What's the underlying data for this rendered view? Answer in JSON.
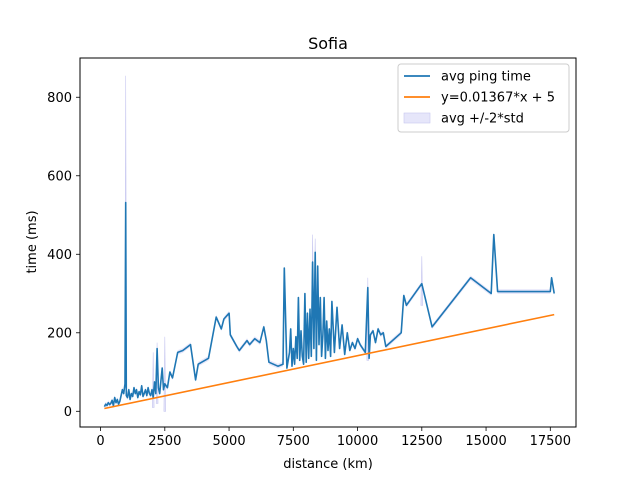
{
  "chart_data": {
    "type": "line",
    "title": "Sofia",
    "xlabel": "distance (km)",
    "ylabel": "time (ms)",
    "xlim": [
      -800,
      18500
    ],
    "ylim": [
      -40,
      900
    ],
    "xticks": [
      0,
      2500,
      5000,
      7500,
      10000,
      12500,
      15000,
      17500
    ],
    "yticks": [
      0,
      200,
      400,
      600,
      800
    ],
    "grid": false,
    "legend_position": "upper right",
    "colors": {
      "avg": "#1f77b4",
      "fit": "#ff7f0e",
      "band_fill": "#e6e6fa",
      "band_edge": "#c8c8f0"
    },
    "legend": [
      {
        "label": "avg ping time",
        "kind": "line",
        "color": "#1f77b4"
      },
      {
        "label": "y=0.01367*x + 5",
        "kind": "line",
        "color": "#ff7f0e"
      },
      {
        "label": "avg +/-2*std",
        "kind": "band",
        "color": "#e6e6fa"
      }
    ],
    "series": [
      {
        "name": "avg ping time",
        "color": "#1f77b4",
        "points": [
          [
            150,
            12
          ],
          [
            200,
            18
          ],
          [
            250,
            15
          ],
          [
            300,
            22
          ],
          [
            350,
            17
          ],
          [
            400,
            20
          ],
          [
            450,
            28
          ],
          [
            500,
            14
          ],
          [
            550,
            35
          ],
          [
            600,
            22
          ],
          [
            650,
            30
          ],
          [
            700,
            18
          ],
          [
            750,
            25
          ],
          [
            800,
            40
          ],
          [
            850,
            55
          ],
          [
            900,
            45
          ],
          [
            950,
            70
          ],
          [
            980,
            532
          ],
          [
            1000,
            40
          ],
          [
            1050,
            35
          ],
          [
            1100,
            55
          ],
          [
            1150,
            30
          ],
          [
            1200,
            45
          ],
          [
            1250,
            38
          ],
          [
            1300,
            60
          ],
          [
            1350,
            45
          ],
          [
            1400,
            55
          ],
          [
            1450,
            35
          ],
          [
            1500,
            50
          ],
          [
            1550,
            42
          ],
          [
            1600,
            65
          ],
          [
            1650,
            38
          ],
          [
            1700,
            45
          ],
          [
            1750,
            55
          ],
          [
            1800,
            40
          ],
          [
            1850,
            60
          ],
          [
            1900,
            45
          ],
          [
            1950,
            40
          ],
          [
            2000,
            55
          ],
          [
            2050,
            35
          ],
          [
            2100,
            75
          ],
          [
            2150,
            45
          ],
          [
            2200,
            160
          ],
          [
            2250,
            60
          ],
          [
            2300,
            45
          ],
          [
            2350,
            80
          ],
          [
            2400,
            110
          ],
          [
            2450,
            55
          ],
          [
            2500,
            70
          ],
          [
            2600,
            60
          ],
          [
            2700,
            100
          ],
          [
            2800,
            85
          ],
          [
            3000,
            150
          ],
          [
            3200,
            155
          ],
          [
            3500,
            170
          ],
          [
            3700,
            80
          ],
          [
            3800,
            120
          ],
          [
            4200,
            135
          ],
          [
            4500,
            240
          ],
          [
            4700,
            210
          ],
          [
            4800,
            235
          ],
          [
            5000,
            250
          ],
          [
            5050,
            195
          ],
          [
            5300,
            165
          ],
          [
            5400,
            155
          ],
          [
            5700,
            180
          ],
          [
            5800,
            170
          ],
          [
            6000,
            185
          ],
          [
            6200,
            175
          ],
          [
            6350,
            215
          ],
          [
            6450,
            180
          ],
          [
            6550,
            125
          ],
          [
            6900,
            115
          ],
          [
            7100,
            120
          ],
          [
            7150,
            365
          ],
          [
            7250,
            110
          ],
          [
            7350,
            150
          ],
          [
            7400,
            210
          ],
          [
            7450,
            115
          ],
          [
            7500,
            160
          ],
          [
            7550,
            120
          ],
          [
            7600,
            190
          ],
          [
            7650,
            135
          ],
          [
            7700,
            290
          ],
          [
            7750,
            130
          ],
          [
            7800,
            205
          ],
          [
            7850,
            140
          ],
          [
            7900,
            120
          ],
          [
            7950,
            300
          ],
          [
            8000,
            125
          ],
          [
            8050,
            250
          ],
          [
            8100,
            135
          ],
          [
            8150,
            260
          ],
          [
            8200,
            140
          ],
          [
            8250,
            380
          ],
          [
            8300,
            160
          ],
          [
            8350,
            405
          ],
          [
            8400,
            130
          ],
          [
            8450,
            370
          ],
          [
            8500,
            170
          ],
          [
            8550,
            290
          ],
          [
            8600,
            140
          ],
          [
            8650,
            195
          ],
          [
            8700,
            290
          ],
          [
            8750,
            135
          ],
          [
            8800,
            230
          ],
          [
            8850,
            155
          ],
          [
            8900,
            210
          ],
          [
            8950,
            140
          ],
          [
            9000,
            280
          ],
          [
            9100,
            150
          ],
          [
            9200,
            265
          ],
          [
            9300,
            160
          ],
          [
            9400,
            220
          ],
          [
            9500,
            145
          ],
          [
            9600,
            200
          ],
          [
            9700,
            155
          ],
          [
            9800,
            175
          ],
          [
            9900,
            160
          ],
          [
            10000,
            185
          ],
          [
            10100,
            170
          ],
          [
            10300,
            150
          ],
          [
            10400,
            315
          ],
          [
            10450,
            135
          ],
          [
            10500,
            195
          ],
          [
            10600,
            205
          ],
          [
            10700,
            175
          ],
          [
            10800,
            210
          ],
          [
            10900,
            195
          ],
          [
            11000,
            200
          ],
          [
            11100,
            165
          ],
          [
            11700,
            200
          ],
          [
            11800,
            295
          ],
          [
            11900,
            270
          ],
          [
            12500,
            325
          ],
          [
            12900,
            215
          ],
          [
            14400,
            340
          ],
          [
            15200,
            300
          ],
          [
            15300,
            450
          ],
          [
            15450,
            305
          ],
          [
            17500,
            305
          ],
          [
            17550,
            340
          ],
          [
            17650,
            300
          ]
        ]
      },
      {
        "name": "y=0.01367*x + 5",
        "color": "#ff7f0e",
        "points": [
          [
            150,
            7.05
          ],
          [
            17650,
            246.3
          ]
        ]
      }
    ],
    "band": {
      "name": "avg +/-2*std",
      "spikes": [
        [
          980,
          855,
          60
        ],
        [
          2050,
          150,
          10
        ],
        [
          2200,
          175,
          20
        ],
        [
          2500,
          190,
          0
        ],
        [
          8250,
          450,
          260
        ],
        [
          8350,
          440,
          300
        ],
        [
          10400,
          340,
          130
        ],
        [
          12500,
          395,
          270
        ]
      ]
    }
  }
}
